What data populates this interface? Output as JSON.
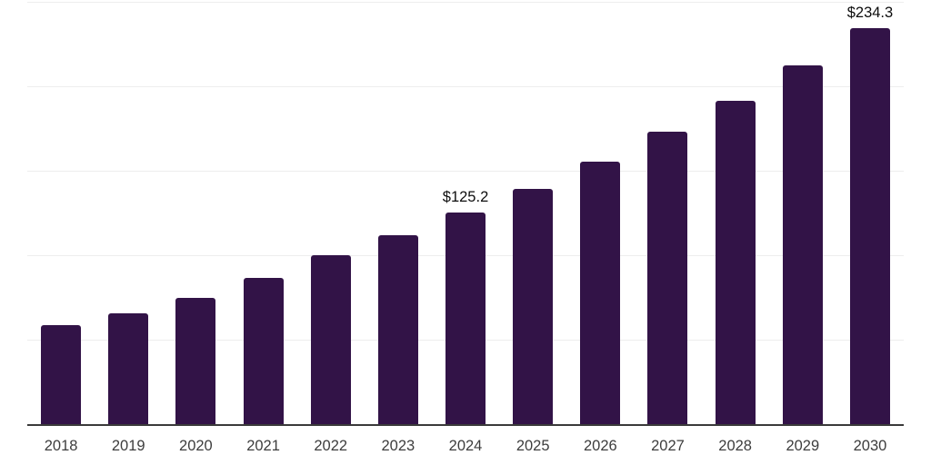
{
  "chart_data": {
    "type": "bar",
    "title": "",
    "xlabel": "",
    "ylabel": "",
    "categories": [
      "2018",
      "2019",
      "2020",
      "2021",
      "2022",
      "2023",
      "2024",
      "2025",
      "2026",
      "2027",
      "2028",
      "2029",
      "2030"
    ],
    "values": [
      58.7,
      65.8,
      74.9,
      86.3,
      100.0,
      112.0,
      125.2,
      139.5,
      155.2,
      173.0,
      191.5,
      212.6,
      234.3
    ],
    "data_labels": {
      "2024": "$125.2",
      "2030": "$234.3"
    },
    "ylim": [
      0,
      250
    ],
    "gridline_step": 50,
    "grid_on": true,
    "legend": "none",
    "colors": {
      "bar": "#321347",
      "gridline": "#ededed",
      "axis_line": "#3a3a3a",
      "data_label_text": "#0d0d0d",
      "tick_label_text": "#3d3d3d",
      "background": "#ffffff"
    }
  }
}
